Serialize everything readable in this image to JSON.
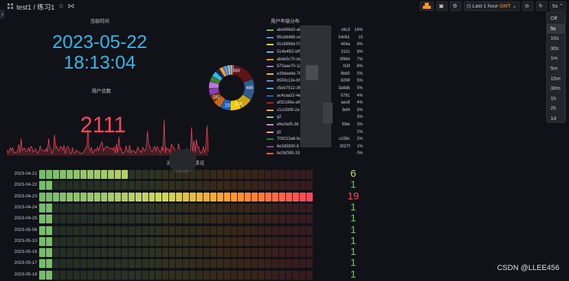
{
  "header": {
    "breadcrumb": "test1 / 练习1",
    "time_range": "Last 1 hour",
    "timezone": "GMT",
    "refresh_value": "5s"
  },
  "refresh_menu": {
    "items": [
      "Off",
      "5s",
      "10s",
      "30s",
      "1m",
      "5m",
      "15m",
      "30m",
      "1h",
      "2h",
      "1d"
    ],
    "selected": "5s"
  },
  "panels": {
    "clock": {
      "title": "当前时间",
      "date": "2023-05-22",
      "time": "18:13:04",
      "color": "#33b5e5"
    },
    "stat": {
      "title": "用户总数",
      "value": "2111",
      "color": "#f2495c"
    },
    "pie": {
      "title": "用户年级分布",
      "slice_labels": [
        "550",
        "498",
        "256",
        "231",
        "181"
      ]
    },
    "bargauge": {
      "title_left": "近",
      "title_right": "情况"
    }
  },
  "legend": [
    {
      "name": "abe566d2-ab",
      "right": "c6c3",
      "pct": "16%",
      "color": "#73bf69"
    },
    {
      "name": "95cb6488-ce",
      "right": "54061",
      "pct": "15",
      "color": "#5794f2"
    },
    {
      "name": "91c8989d-f7d",
      "right": "404a",
      "pct": "9%",
      "color": "#fade2a"
    },
    {
      "name": "514b4f52-bff",
      "right": "312c",
      "pct": "8%",
      "color": "#8ab8ff"
    },
    {
      "name": "abde5c70-da",
      "right": "3f964",
      "pct": "7%",
      "color": "#ff9830"
    },
    {
      "name": "570aae70-1d",
      "right": "f16f",
      "pct": "6%",
      "color": "#b877d9"
    },
    {
      "name": "e39deebd-76",
      "right": "9bb5",
      "pct": "5%",
      "color": "#f2cc0c"
    },
    {
      "name": "b550c12e-bf",
      "right": "82f4f",
      "pct": "5%",
      "color": "#5794f2"
    },
    {
      "name": "c5eb7512-36",
      "right": "3a9db",
      "pct": "5%",
      "color": "#33b5e5"
    },
    {
      "name": "ac4caa22-4e",
      "right": "5781",
      "pct": "4%",
      "color": "#1f60c4"
    },
    {
      "name": "af32189a-a9",
      "right": "aec8",
      "pct": "4%",
      "color": "#c4162a"
    },
    {
      "name": "c1cc5bf8-2a",
      "right": "3ef4",
      "pct": "3%",
      "color": "#ffb357"
    },
    {
      "name": "g2",
      "right": "",
      "pct": "3%",
      "color": "#96d98d"
    },
    {
      "name": "efec0ef5-36",
      "right": "f0be",
      "pct": "3%",
      "color": "#ca95e5"
    },
    {
      "name": "g1",
      "right": "",
      "pct": "2%",
      "color": "#ffa6b0"
    },
    {
      "name": "709213a6-6a",
      "right": "c158c",
      "pct": "2%",
      "color": "#37872d"
    },
    {
      "name": "6e3d5930-8",
      "right": "3027f",
      "pct": "1%",
      "color": "#8f3bb8"
    },
    {
      "name": "bc0bf395-33",
      "right": "",
      "pct": "0%",
      "color": "#fa6400"
    }
  ],
  "chart_data": {
    "type": "bar",
    "categories": [
      "2023-04-21",
      "2023-04-22",
      "2023-04-23",
      "2023-04-24",
      "2023-04-25",
      "2023-05-06",
      "2023-05-10",
      "2023-05-16",
      "2023-05-17",
      "2023-05-18"
    ],
    "values": [
      6,
      1,
      19,
      1,
      1,
      1,
      1,
      1,
      1,
      1
    ],
    "value_colors": [
      "#cfd95f",
      "#73bf69",
      "#f2495c",
      "#73bf69",
      "#73bf69",
      "#73bf69",
      "#73bf69",
      "#73bf69",
      "#73bf69",
      "#73bf69"
    ],
    "xlim": [
      0,
      19
    ]
  },
  "watermark": "CSDN @LLEE456"
}
